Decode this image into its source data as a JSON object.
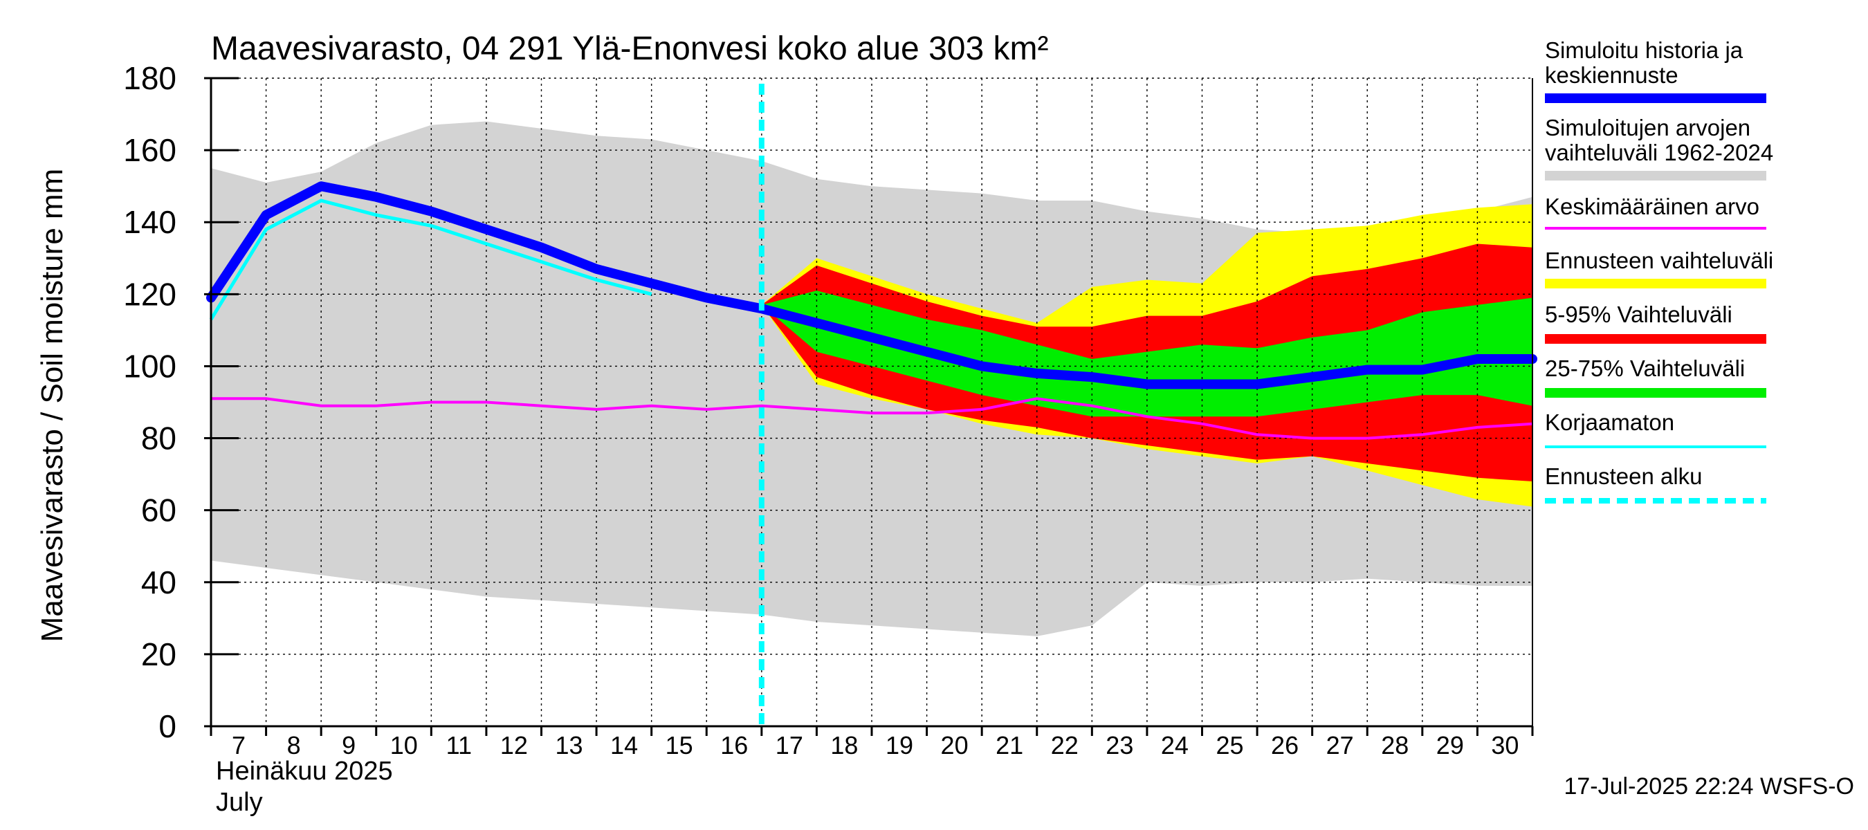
{
  "chart_data": {
    "type": "area",
    "title": "Maavesivarasto, 04 291 Ylä-Enonvesi koko alue 303 km²",
    "ylabel": "Maavesivarasto / Soil moisture   mm",
    "xlabel_line1": "Heinäkuu  2025",
    "xlabel_line2": "July",
    "footer": "17-Jul-2025 22:24 WSFS-O",
    "ylim": [
      0,
      180
    ],
    "yticks": [
      0,
      20,
      40,
      60,
      80,
      100,
      120,
      140,
      160,
      180
    ],
    "x_start": 7,
    "x_end": 31,
    "xtick_days": [
      7,
      8,
      9,
      10,
      11,
      12,
      13,
      14,
      15,
      16,
      17,
      18,
      19,
      20,
      21,
      22,
      23,
      24,
      25,
      26,
      27,
      28,
      29,
      30
    ],
    "forecast_start": 17,
    "grid": true,
    "legend_position": "right",
    "colors": {
      "history": "#0000ff",
      "range": "#d3d3d3",
      "mean": "#ff00ff",
      "forecast_range": "#ffff00",
      "p5_95": "#ff0000",
      "p25_75": "#00ee00",
      "uncorrected": "#00ffff",
      "forecast_start": "#00ffff"
    },
    "legend": [
      {
        "key": "history",
        "line1": "Simuloitu historia ja",
        "line2": "keskiennuste",
        "style": "thick"
      },
      {
        "key": "range",
        "line1": "Simuloitujen arvojen",
        "line2": "vaihteluväli 1962-2024",
        "style": "band"
      },
      {
        "key": "mean",
        "line1": "Keskimääräinen arvo",
        "line2": "",
        "style": "thin"
      },
      {
        "key": "forecast_range",
        "line1": "Ennusteen vaihteluväli",
        "line2": "",
        "style": "band"
      },
      {
        "key": "p5_95",
        "line1": "5-95% Vaihteluväli",
        "line2": "",
        "style": "band"
      },
      {
        "key": "p25_75",
        "line1": "25-75% Vaihteluväli",
        "line2": "",
        "style": "band"
      },
      {
        "key": "uncorrected",
        "line1": "Korjaamaton",
        "line2": "",
        "style": "thin"
      },
      {
        "key": "forecast_start",
        "line1": "Ennusteen alku",
        "line2": "",
        "style": "dashed"
      }
    ],
    "series": {
      "range": {
        "x": [
          7,
          8,
          9,
          10,
          11,
          12,
          13,
          14,
          15,
          16,
          17,
          18,
          19,
          20,
          21,
          22,
          23,
          24,
          25,
          26,
          27,
          28,
          29,
          30,
          31
        ],
        "upper": [
          155,
          151,
          154,
          162,
          167,
          168,
          166,
          164,
          163,
          160,
          157,
          152,
          150,
          149,
          148,
          146,
          146,
          143,
          141,
          138,
          137,
          139,
          141,
          143,
          147
        ],
        "lower": [
          46,
          44,
          42,
          40,
          38,
          36,
          35,
          34,
          33,
          32,
          31,
          29,
          28,
          27,
          26,
          25,
          28,
          40,
          39,
          40,
          40,
          41,
          40,
          39,
          39
        ]
      },
      "forecast_range": {
        "x": [
          17,
          18,
          19,
          20,
          21,
          22,
          23,
          24,
          25,
          26,
          27,
          28,
          29,
          30,
          31
        ],
        "upper": [
          117,
          130,
          125,
          120,
          116,
          112,
          122,
          124,
          123,
          137,
          138,
          139,
          142,
          144,
          145
        ],
        "lower": [
          117,
          95,
          91,
          88,
          84,
          81,
          80,
          77,
          75,
          73,
          75,
          71,
          67,
          63,
          61
        ]
      },
      "p5_95": {
        "x": [
          17,
          18,
          19,
          20,
          21,
          22,
          23,
          24,
          25,
          26,
          27,
          28,
          29,
          30,
          31
        ],
        "upper": [
          117,
          128,
          123,
          118,
          114,
          111,
          111,
          114,
          114,
          118,
          125,
          127,
          130,
          134,
          133
        ],
        "lower": [
          117,
          97,
          92,
          88,
          85,
          83,
          80,
          78,
          76,
          74,
          75,
          73,
          71,
          69,
          68
        ]
      },
      "p25_75": {
        "x": [
          17,
          18,
          19,
          20,
          21,
          22,
          23,
          24,
          25,
          26,
          27,
          28,
          29,
          30,
          31
        ],
        "upper": [
          117,
          121,
          117,
          113,
          110,
          106,
          102,
          104,
          106,
          105,
          108,
          110,
          115,
          117,
          119
        ],
        "lower": [
          117,
          104,
          100,
          96,
          92,
          89,
          86,
          86,
          86,
          86,
          88,
          90,
          92,
          92,
          89
        ]
      },
      "history": {
        "x": [
          7,
          8,
          9,
          10,
          11,
          12,
          13,
          14,
          15,
          16,
          17,
          18,
          19,
          20,
          21,
          22,
          23,
          24,
          25,
          26,
          27,
          28,
          29,
          30,
          31
        ],
        "y": [
          119,
          142,
          150,
          147,
          143,
          138,
          133,
          127,
          123,
          119,
          116,
          112,
          108,
          104,
          100,
          98,
          97,
          95,
          95,
          95,
          97,
          99,
          99,
          102,
          102
        ]
      },
      "uncorrected": {
        "x": [
          7,
          8,
          9,
          10,
          11,
          12,
          13,
          14,
          15
        ],
        "y": [
          113,
          138,
          146,
          142,
          139,
          134,
          129,
          124,
          120
        ]
      },
      "mean": {
        "x": [
          7,
          8,
          9,
          10,
          11,
          12,
          13,
          14,
          15,
          16,
          17,
          18,
          19,
          20,
          21,
          22,
          23,
          24,
          25,
          26,
          27,
          28,
          29,
          30,
          31
        ],
        "y": [
          91,
          91,
          89,
          89,
          90,
          90,
          89,
          88,
          89,
          88,
          89,
          88,
          87,
          87,
          88,
          91,
          89,
          86,
          84,
          81,
          80,
          80,
          81,
          83,
          84
        ]
      }
    }
  }
}
